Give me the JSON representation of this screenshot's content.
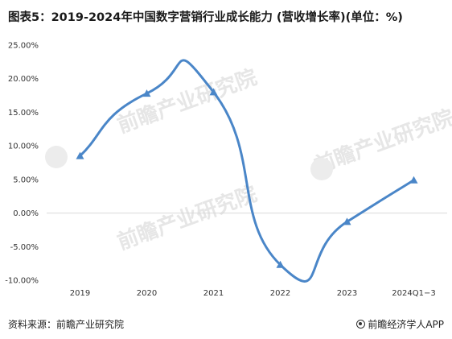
{
  "title": "图表5：2019-2024年中国数字营销行业成长能力 (营收增长率)(单位：%)",
  "footer": {
    "source": "资料来源：前瞻产业研究院",
    "brand": "前瞻经济学人APP",
    "brand_icon": "circle-logo-icon"
  },
  "watermark": "前瞻产业研究院",
  "chart_data": {
    "type": "line",
    "title": "图表5：2019-2024年中国数字营销行业成长能力 (营收增长率)(单位：%)",
    "xlabel": "",
    "ylabel": "",
    "categories": [
      "2019",
      "2020",
      "2021",
      "2022",
      "2023",
      "2024Q1−3"
    ],
    "series": [
      {
        "values": [
          8.5,
          17.8,
          18.0,
          -7.7,
          -1.3,
          4.9
        ],
        "color": "#4a86c8",
        "marker": "triangle",
        "smooth": true
      }
    ],
    "ylim": [
      -10,
      25
    ],
    "yticks": [
      -10,
      -5,
      0,
      5,
      10,
      15,
      20,
      25
    ],
    "ytick_labels": [
      "-10.00%",
      "-5.00%",
      "0.00%",
      "5.00%",
      "10.00%",
      "15.00%",
      "20.00%",
      "25.00%"
    ],
    "grid": false,
    "zero_line_color": "#d9d9d9",
    "legend": "none"
  }
}
